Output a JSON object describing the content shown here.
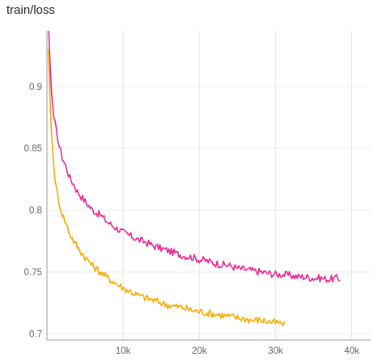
{
  "chart_data": {
    "type": "line",
    "title": "train/loss",
    "xlabel": "",
    "ylabel": "",
    "xlim": [
      0,
      42500
    ],
    "ylim": [
      0.695,
      0.945
    ],
    "grid": true,
    "x_ticks": [
      {
        "value": 10000,
        "label": "10k"
      },
      {
        "value": 20000,
        "label": "20k"
      },
      {
        "value": 30000,
        "label": "30k"
      },
      {
        "value": 40000,
        "label": "40k"
      }
    ],
    "y_ticks": [
      {
        "value": 0.7,
        "label": "0.7"
      },
      {
        "value": 0.75,
        "label": "0.75"
      },
      {
        "value": 0.8,
        "label": "0.8"
      },
      {
        "value": 0.85,
        "label": "0.85"
      },
      {
        "value": 0.9,
        "label": "0.9"
      }
    ],
    "series": [
      {
        "color": "#e52592",
        "points": [
          [
            200,
            0.95
          ],
          [
            400,
            0.92
          ],
          [
            600,
            0.895
          ],
          [
            900,
            0.875
          ],
          [
            1200,
            0.865
          ],
          [
            1600,
            0.852
          ],
          [
            2000,
            0.843
          ],
          [
            2500,
            0.835
          ],
          [
            3000,
            0.826
          ],
          [
            3500,
            0.821
          ],
          [
            4000,
            0.815
          ],
          [
            5000,
            0.807
          ],
          [
            6000,
            0.8
          ],
          [
            7000,
            0.796
          ],
          [
            8000,
            0.79
          ],
          [
            9000,
            0.786
          ],
          [
            10000,
            0.782
          ],
          [
            11000,
            0.779
          ],
          [
            12000,
            0.776
          ],
          [
            13000,
            0.774
          ],
          [
            14000,
            0.771
          ],
          [
            15000,
            0.769
          ],
          [
            16000,
            0.767
          ],
          [
            17000,
            0.765
          ],
          [
            18000,
            0.763
          ],
          [
            19000,
            0.762
          ],
          [
            20000,
            0.76
          ],
          [
            21000,
            0.759
          ],
          [
            22000,
            0.757
          ],
          [
            23000,
            0.756
          ],
          [
            24000,
            0.755
          ],
          [
            25000,
            0.753
          ],
          [
            26000,
            0.752
          ],
          [
            27000,
            0.751
          ],
          [
            28000,
            0.75
          ],
          [
            29000,
            0.749
          ],
          [
            30000,
            0.748
          ],
          [
            31000,
            0.748
          ],
          [
            32000,
            0.747
          ],
          [
            33000,
            0.746
          ],
          [
            34000,
            0.746
          ],
          [
            35000,
            0.745
          ],
          [
            36000,
            0.745
          ],
          [
            37000,
            0.744
          ],
          [
            38000,
            0.745
          ],
          [
            38500,
            0.744
          ]
        ]
      },
      {
        "color": "#f7a800",
        "points": [
          [
            200,
            0.93
          ],
          [
            400,
            0.89
          ],
          [
            600,
            0.862
          ],
          [
            900,
            0.835
          ],
          [
            1200,
            0.818
          ],
          [
            1600,
            0.806
          ],
          [
            2000,
            0.797
          ],
          [
            2500,
            0.789
          ],
          [
            3000,
            0.781
          ],
          [
            3500,
            0.775
          ],
          [
            4000,
            0.77
          ],
          [
            5000,
            0.762
          ],
          [
            6000,
            0.755
          ],
          [
            7000,
            0.75
          ],
          [
            8000,
            0.745
          ],
          [
            9000,
            0.741
          ],
          [
            10000,
            0.737
          ],
          [
            11000,
            0.734
          ],
          [
            12000,
            0.731
          ],
          [
            13000,
            0.729
          ],
          [
            14000,
            0.727
          ],
          [
            15000,
            0.725
          ],
          [
            16000,
            0.723
          ],
          [
            17000,
            0.722
          ],
          [
            18000,
            0.721
          ],
          [
            19000,
            0.719
          ],
          [
            20000,
            0.718
          ],
          [
            21000,
            0.717
          ],
          [
            22000,
            0.716
          ],
          [
            23000,
            0.715
          ],
          [
            24000,
            0.714
          ],
          [
            25000,
            0.713
          ],
          [
            26000,
            0.712
          ],
          [
            27000,
            0.711
          ],
          [
            28000,
            0.711
          ],
          [
            29000,
            0.71
          ],
          [
            30000,
            0.709
          ],
          [
            30800,
            0.708
          ],
          [
            31200,
            0.707
          ]
        ]
      }
    ]
  }
}
